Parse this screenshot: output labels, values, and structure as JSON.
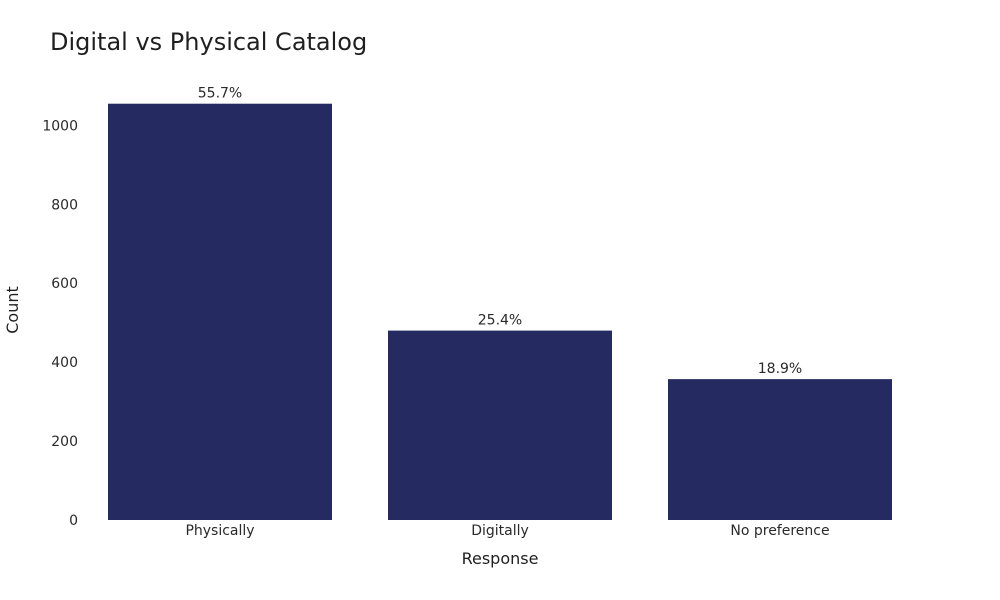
{
  "chart_data": {
    "type": "bar",
    "title": "Digital vs Physical Catalog",
    "xlabel": "Response",
    "ylabel": "Count",
    "categories": [
      "Physically",
      "Digitally",
      "No preference"
    ],
    "values": [
      1055,
      480,
      357
    ],
    "data_labels": [
      "55.7%",
      "25.4%",
      "18.9%"
    ],
    "yticks": [
      0,
      200,
      400,
      600,
      800,
      1000
    ],
    "ylim": [
      0,
      1110
    ],
    "bar_color": "#252a61",
    "grid": false,
    "legend": false
  }
}
